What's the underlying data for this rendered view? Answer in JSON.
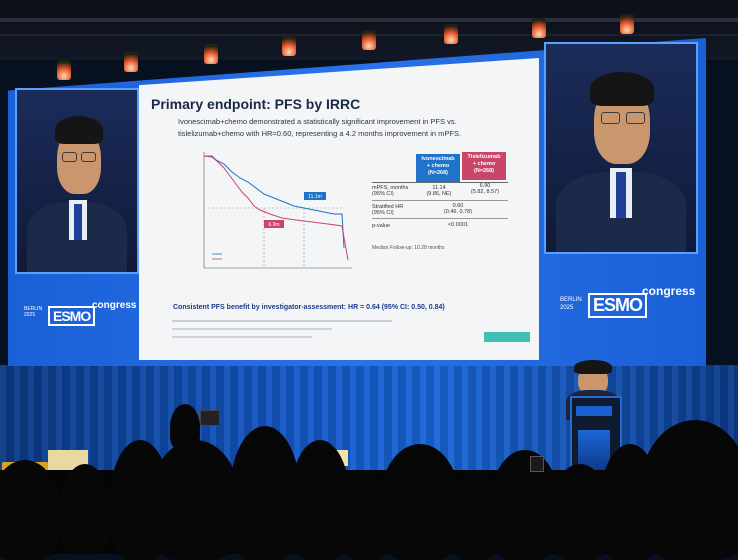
{
  "slide": {
    "title": "Primary endpoint: PFS by IRRC",
    "subtitle_line1": "Ivonescimab+chemo demonstrated a statistically significant improvement in PFS vs.",
    "subtitle_line2": "tislelizumab+chemo with HR=0.60, representing a 4.2 months improvement in mPFS.",
    "km_label_ivo": "11.1m",
    "km_label_tis": "6.9m",
    "table": {
      "col1_line1": "Ivonescimab",
      "col1_line2": "+ chemo",
      "col1_line3": "(N=268)",
      "col2_line1": "Tislelizumab",
      "col2_line2": "+ chemo",
      "col2_line3": "(N=268)",
      "row1_label_a": "mPFS, months",
      "row1_label_b": "(95% CI)",
      "row1_ivo": "11.14",
      "row1_ivo_ci": "(9.86, NE)",
      "row1_tis": "6.90",
      "row1_tis_ci": "(5.82, 8.57)",
      "row2_label_a": "Stratified HR",
      "row2_label_b": "(95% CI)",
      "row2_val": "0.60",
      "row2_ci": "(0.46, 0.78)",
      "row3_label": "p-value",
      "row3_val": "<0.0001"
    },
    "followup": "Median Follow-up: 10.28 months",
    "consistent": "Consistent PFS benefit by investigator-assessment: HR = 0.64 (95% CI: 0.50, 0.84)"
  },
  "branding": {
    "city": "BERLIN",
    "year": "2025",
    "logo": "ESMO",
    "congress": "congress"
  },
  "colors": {
    "ivonescimab": "#1f73c8",
    "tislelizumab": "#c9456a",
    "screen_blue": "#2a72ea"
  }
}
